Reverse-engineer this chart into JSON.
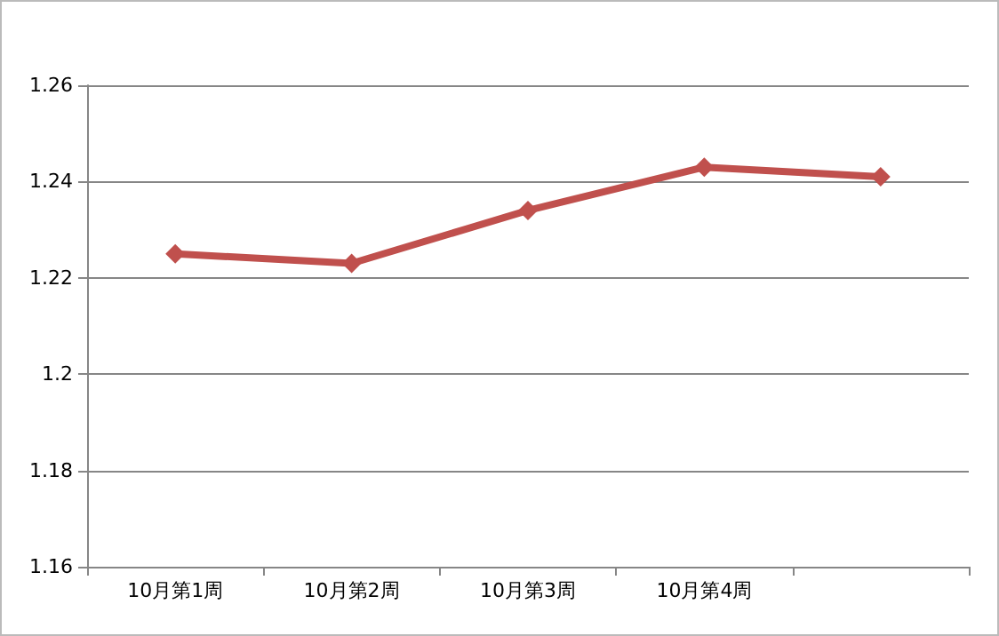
{
  "chart_data": {
    "type": "line",
    "categories": [
      "10月第1周",
      "10月第2周",
      "10月第3周",
      "10月第4周",
      null
    ],
    "series": [
      {
        "color": "#c0504d",
        "values": [
          1.225,
          1.223,
          1.234,
          1.243,
          1.241
        ]
      }
    ],
    "ylim": [
      1.16,
      1.26
    ],
    "yticks": [
      1.16,
      1.18,
      1.2,
      1.22,
      1.24,
      1.26
    ],
    "grid": "y",
    "marker": "diamond",
    "line_style": "solid"
  }
}
